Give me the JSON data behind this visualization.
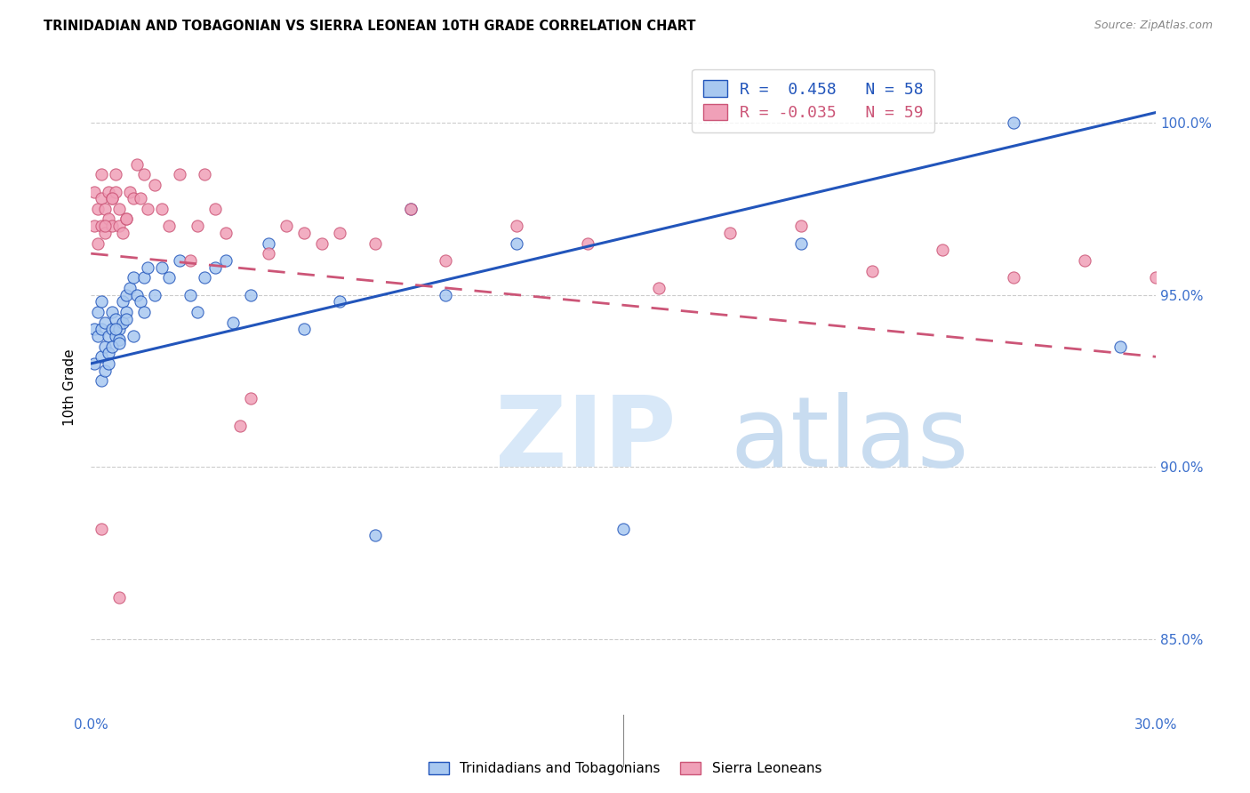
{
  "title": "TRINIDADIAN AND TOBAGONIAN VS SIERRA LEONEAN 10TH GRADE CORRELATION CHART",
  "source": "Source: ZipAtlas.com",
  "ylabel": "10th Grade",
  "ytick_labels": [
    "85.0%",
    "90.0%",
    "95.0%",
    "100.0%"
  ],
  "ytick_values": [
    0.85,
    0.9,
    0.95,
    1.0
  ],
  "xmin": 0.0,
  "xmax": 0.3,
  "ymin": 0.828,
  "ymax": 1.018,
  "legend1_label": "Trinidadians and Tobagonians",
  "legend2_label": "Sierra Leoneans",
  "r1": 0.458,
  "n1": 58,
  "r2": -0.035,
  "n2": 59,
  "color_blue": "#A8C8F0",
  "color_pink": "#F0A0B8",
  "trendline1_color": "#2255BB",
  "trendline2_color": "#CC5577",
  "blue_trendline_y0": 0.93,
  "blue_trendline_y1": 1.003,
  "pink_trendline_y0": 0.962,
  "pink_trendline_y1": 0.932,
  "blue_scatter_x": [
    0.001,
    0.001,
    0.002,
    0.002,
    0.003,
    0.003,
    0.003,
    0.004,
    0.004,
    0.005,
    0.005,
    0.006,
    0.006,
    0.007,
    0.007,
    0.008,
    0.008,
    0.009,
    0.009,
    0.01,
    0.01,
    0.011,
    0.012,
    0.013,
    0.014,
    0.015,
    0.016,
    0.018,
    0.02,
    0.022,
    0.025,
    0.028,
    0.03,
    0.032,
    0.035,
    0.038,
    0.04,
    0.045,
    0.05,
    0.06,
    0.07,
    0.08,
    0.09,
    0.1,
    0.12,
    0.15,
    0.2,
    0.26,
    0.29,
    0.003,
    0.004,
    0.005,
    0.006,
    0.007,
    0.008,
    0.01,
    0.012,
    0.015
  ],
  "blue_scatter_y": [
    0.94,
    0.93,
    0.938,
    0.945,
    0.932,
    0.94,
    0.948,
    0.935,
    0.942,
    0.933,
    0.938,
    0.94,
    0.945,
    0.938,
    0.943,
    0.94,
    0.937,
    0.942,
    0.948,
    0.945,
    0.95,
    0.952,
    0.955,
    0.95,
    0.948,
    0.955,
    0.958,
    0.95,
    0.958,
    0.955,
    0.96,
    0.95,
    0.945,
    0.955,
    0.958,
    0.96,
    0.942,
    0.95,
    0.965,
    0.94,
    0.948,
    0.88,
    0.975,
    0.95,
    0.965,
    0.882,
    0.965,
    1.0,
    0.935,
    0.925,
    0.928,
    0.93,
    0.935,
    0.94,
    0.936,
    0.943,
    0.938,
    0.945
  ],
  "pink_scatter_x": [
    0.001,
    0.001,
    0.002,
    0.002,
    0.003,
    0.003,
    0.003,
    0.004,
    0.004,
    0.005,
    0.005,
    0.006,
    0.006,
    0.007,
    0.007,
    0.008,
    0.008,
    0.009,
    0.01,
    0.011,
    0.012,
    0.013,
    0.015,
    0.016,
    0.018,
    0.02,
    0.022,
    0.025,
    0.028,
    0.03,
    0.032,
    0.035,
    0.038,
    0.042,
    0.045,
    0.05,
    0.055,
    0.06,
    0.065,
    0.07,
    0.08,
    0.09,
    0.1,
    0.12,
    0.14,
    0.16,
    0.18,
    0.2,
    0.22,
    0.24,
    0.26,
    0.28,
    0.3,
    0.003,
    0.004,
    0.006,
    0.008,
    0.01,
    0.014
  ],
  "pink_scatter_y": [
    0.98,
    0.97,
    0.965,
    0.975,
    0.97,
    0.978,
    0.985,
    0.975,
    0.968,
    0.972,
    0.98,
    0.97,
    0.978,
    0.98,
    0.985,
    0.975,
    0.97,
    0.968,
    0.972,
    0.98,
    0.978,
    0.988,
    0.985,
    0.975,
    0.982,
    0.975,
    0.97,
    0.985,
    0.96,
    0.97,
    0.985,
    0.975,
    0.968,
    0.912,
    0.92,
    0.962,
    0.97,
    0.968,
    0.965,
    0.968,
    0.965,
    0.975,
    0.96,
    0.97,
    0.965,
    0.952,
    0.968,
    0.97,
    0.957,
    0.963,
    0.955,
    0.96,
    0.955,
    0.882,
    0.97,
    0.978,
    0.862,
    0.972,
    0.978
  ]
}
